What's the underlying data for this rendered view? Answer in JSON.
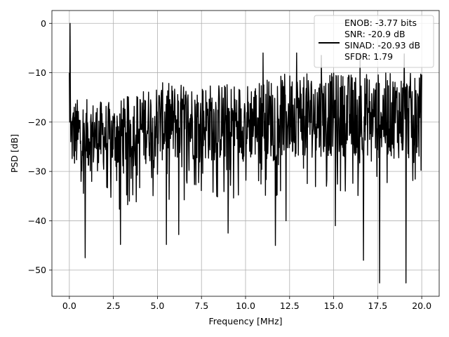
{
  "chart_data": {
    "type": "line",
    "title": "",
    "xlabel": "Frequency [MHz]",
    "ylabel": "PSD [dB]",
    "xlim": [
      -0.99,
      20.99
    ],
    "ylim": [
      -55.3,
      2.6
    ],
    "x_ticks": [
      0.0,
      2.5,
      5.0,
      7.5,
      10.0,
      12.5,
      15.0,
      17.5,
      20.0
    ],
    "x_tick_labels": [
      "0.0",
      "2.5",
      "5.0",
      "7.5",
      "10.0",
      "12.5",
      "15.0",
      "17.5",
      "20.0"
    ],
    "y_ticks": [
      0,
      -10,
      -20,
      -30,
      -40,
      -50
    ],
    "y_tick_labels": [
      "0",
      "−10",
      "−20",
      "−30",
      "−40",
      "−50"
    ],
    "grid": true,
    "legend_position": "top-right",
    "legend_lines": [
      "ENOB: -3.77 bits",
      "SNR: -20.9 dB",
      "SINAD: -20.93 dB",
      "SFDR: 1.79"
    ],
    "series": [
      {
        "color": "#000000",
        "x_start": 0.0,
        "x_end": 20.0,
        "points": 1024,
        "peak": {
          "x": 0.04,
          "y": 0.0
        },
        "envelope_upper": [
          [
            0.1,
            -15
          ],
          [
            2.5,
            -16
          ],
          [
            5.0,
            -12
          ],
          [
            7.5,
            -12
          ],
          [
            10.0,
            -12
          ],
          [
            12.5,
            -10
          ],
          [
            15.0,
            -10
          ],
          [
            17.5,
            -10
          ],
          [
            20.0,
            -10
          ]
        ],
        "envelope_lower": [
          [
            0.1,
            -30
          ],
          [
            2.5,
            -30
          ],
          [
            5.0,
            -28
          ],
          [
            7.5,
            -28
          ],
          [
            10.0,
            -28
          ],
          [
            12.5,
            -27
          ],
          [
            15.0,
            -27
          ],
          [
            17.5,
            -27
          ],
          [
            20.0,
            -28
          ]
        ],
        "spikes": [
          {
            "x": 0.9,
            "y": -47.5
          },
          {
            "x": 5.5,
            "y": -44.8
          },
          {
            "x": 11.7,
            "y": -45.0
          },
          {
            "x": 16.7,
            "y": -48.0
          },
          {
            "x": 17.6,
            "y": -52.6
          },
          {
            "x": 19.1,
            "y": -52.6
          },
          {
            "x": 2.9,
            "y": -44.8
          },
          {
            "x": 6.2,
            "y": -42.8
          },
          {
            "x": 9.0,
            "y": -42.5
          },
          {
            "x": 12.3,
            "y": -40.0
          },
          {
            "x": 15.1,
            "y": -41.0
          },
          {
            "x": 11.0,
            "y": -6.0
          },
          {
            "x": 12.9,
            "y": -6.0
          },
          {
            "x": 16.5,
            "y": -6.0
          },
          {
            "x": 19.0,
            "y": -6.2
          },
          {
            "x": 14.3,
            "y": -6.5
          }
        ]
      }
    ]
  }
}
